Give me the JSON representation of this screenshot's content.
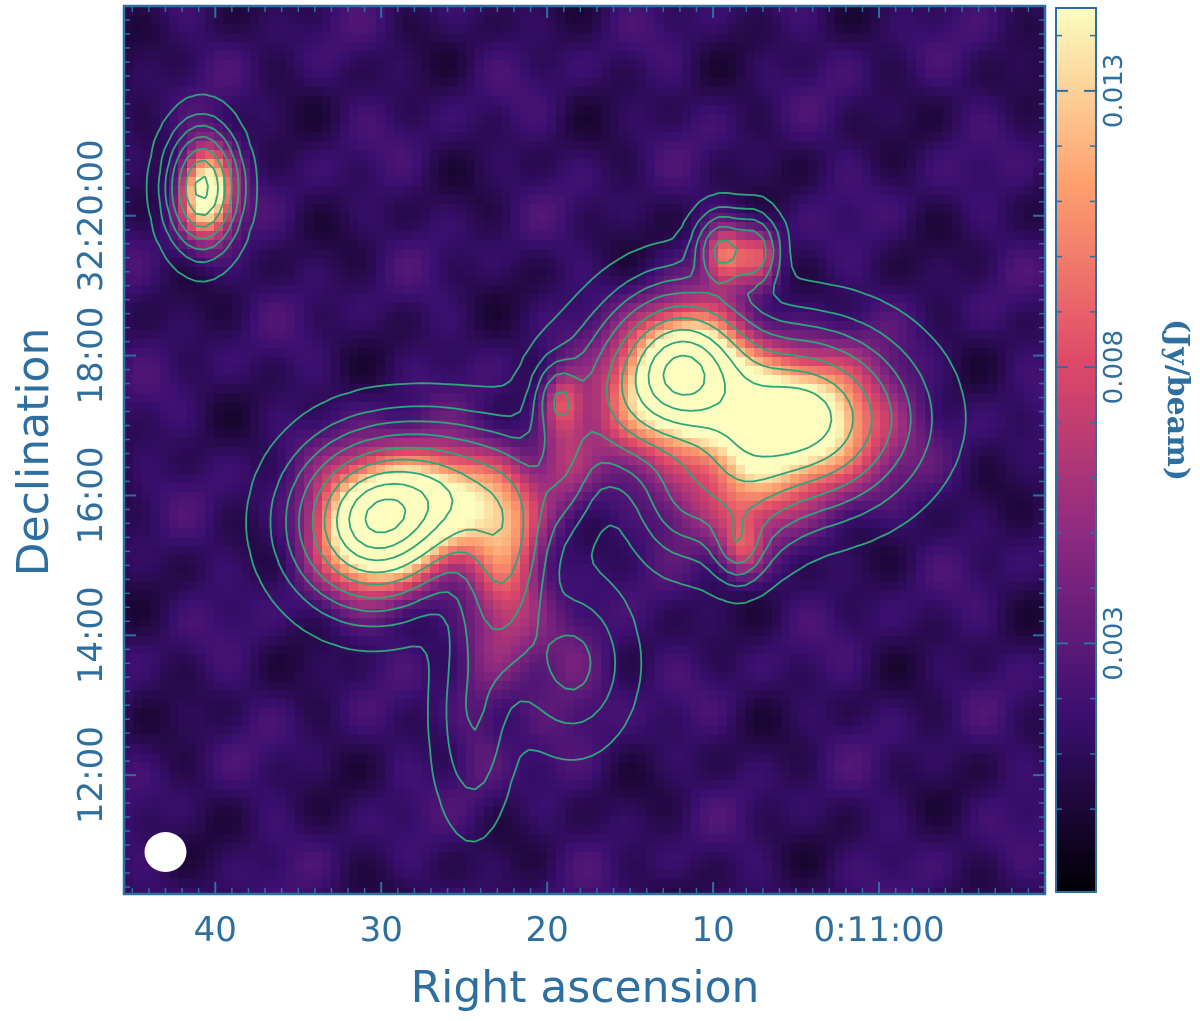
{
  "chart_data": {
    "type": "heatmap",
    "title": "",
    "xlabel": "Right ascension",
    "ylabel": "Declination",
    "x_ticks": [
      {
        "value": 40,
        "label": "40"
      },
      {
        "value": 30,
        "label": "30"
      },
      {
        "value": 20,
        "label": "20"
      },
      {
        "value": 10,
        "label": "10"
      },
      {
        "value": 0,
        "label": "0:11:00"
      }
    ],
    "y_ticks": [
      {
        "value": 12,
        "label": "12:00"
      },
      {
        "value": 14,
        "label": "14:00"
      },
      {
        "value": 16,
        "label": "16:00"
      },
      {
        "value": 18,
        "label": "18:00"
      },
      {
        "value": 20,
        "label": "32:20:00"
      }
    ],
    "xlim": [
      45.5,
      -10
    ],
    "ylim": [
      10.3,
      23
    ],
    "colorbar": {
      "label": "(Jy/beam)",
      "range": [
        -0.0015,
        0.0145
      ],
      "ticks": [
        {
          "value": 0.003,
          "label": "0.003"
        },
        {
          "value": 0.008,
          "label": "0.008"
        },
        {
          "value": 0.013,
          "label": "0.013"
        }
      ],
      "colormap": [
        "#000004",
        "#3b0f70",
        "#8c2981",
        "#de4968",
        "#fe9f6d",
        "#fcfdbf"
      ]
    },
    "contour_color": "#2fa57a",
    "beam": {
      "ra": 43,
      "dec": 10.9,
      "color": "#ffffff"
    },
    "sources": [
      {
        "ra": 40.8,
        "dec": 20.4,
        "peak": 0.016,
        "sigma_ra": 1.1,
        "sigma_dec": 0.45
      },
      {
        "ra": 30.5,
        "dec": 15.6,
        "peak": 0.02,
        "sigma_ra": 2.5,
        "sigma_dec": 0.6
      },
      {
        "ra": 26.5,
        "dec": 16.0,
        "peak": 0.012,
        "sigma_ra": 3.0,
        "sigma_dec": 0.55
      },
      {
        "ra": 22.5,
        "dec": 15.4,
        "peak": 0.0055,
        "sigma_ra": 1.5,
        "sigma_dec": 0.7
      },
      {
        "ra": 19.2,
        "dec": 16.6,
        "peak": 0.004,
        "sigma_ra": 1.2,
        "sigma_dec": 0.6
      },
      {
        "ra": 19.3,
        "dec": 17.4,
        "peak": 0.005,
        "sigma_ra": 0.8,
        "sigma_dec": 0.3
      },
      {
        "ra": 15.0,
        "dec": 17.3,
        "peak": 0.005,
        "sigma_ra": 2.5,
        "sigma_dec": 0.6
      },
      {
        "ra": 11.8,
        "dec": 17.8,
        "peak": 0.022,
        "sigma_ra": 2.4,
        "sigma_dec": 0.6
      },
      {
        "ra": 5.0,
        "dec": 17.1,
        "peak": 0.018,
        "sigma_ra": 3.4,
        "sigma_dec": 0.65
      },
      {
        "ra": 8.5,
        "dec": 16.2,
        "peak": 0.006,
        "sigma_ra": 2.0,
        "sigma_dec": 0.6
      },
      {
        "ra": 8.5,
        "dec": 15.3,
        "peak": 0.005,
        "sigma_ra": 0.9,
        "sigma_dec": 0.3
      },
      {
        "ra": 9.5,
        "dec": 19.5,
        "peak": 0.008,
        "sigma_ra": 0.9,
        "sigma_dec": 0.3
      },
      {
        "ra": 7.5,
        "dec": 19.5,
        "peak": 0.006,
        "sigma_ra": 0.8,
        "sigma_dec": 0.3
      },
      {
        "ra": 23.0,
        "dec": 14.5,
        "peak": 0.0035,
        "sigma_ra": 1.5,
        "sigma_dec": 0.8
      },
      {
        "ra": 18.5,
        "dec": 13.6,
        "peak": 0.0028,
        "sigma_ra": 1.8,
        "sigma_dec": 0.6
      },
      {
        "ra": 24.5,
        "dec": 12.8,
        "peak": 0.0022,
        "sigma_ra": 1.2,
        "sigma_dec": 0.8
      },
      {
        "ra": 12.0,
        "dec": 16.0,
        "peak": 0.003,
        "sigma_ra": 1.5,
        "sigma_dec": 0.5
      }
    ],
    "contour_levels": [
      0.0014,
      0.0022,
      0.0035,
      0.0055,
      0.0085,
      0.012,
      0.016,
      0.02,
      0.024,
      0.028,
      0.032,
      0.036,
      0.04
    ]
  }
}
